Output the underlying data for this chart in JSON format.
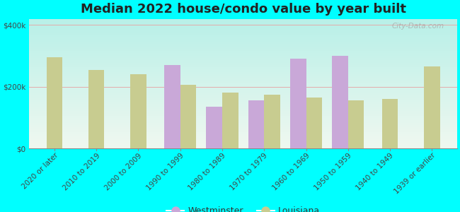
{
  "title": "Median 2022 house/condo value by year built",
  "categories": [
    "2020 or later",
    "2010 to 2019",
    "2000 to 2009",
    "1990 to 1999",
    "1980 to 1989",
    "1970 to 1979",
    "1960 to 1969",
    "1950 to 1959",
    "1940 to 1949",
    "1939 or earlier"
  ],
  "westminster": [
    null,
    null,
    null,
    270000,
    135000,
    155000,
    290000,
    300000,
    null,
    null
  ],
  "louisiana": [
    295000,
    255000,
    240000,
    205000,
    180000,
    175000,
    165000,
    155000,
    160000,
    265000
  ],
  "westminster_color": "#c9a8d8",
  "louisiana_color": "#c8cc90",
  "background_color": "#00ffff",
  "plot_bg_top": "#b8f0e8",
  "plot_bg_bottom": "#f0f8f0",
  "bar_width": 0.38,
  "ylim": [
    0,
    420000
  ],
  "ytick_labels": [
    "$0",
    "$200k",
    "$400k"
  ],
  "title_fontsize": 13,
  "tick_fontsize": 7.5,
  "legend_labels": [
    "Westminster",
    "Louisiana"
  ],
  "watermark": "City-Data.com",
  "grid_color": "#e8a0a0",
  "axis_color": "#888888"
}
